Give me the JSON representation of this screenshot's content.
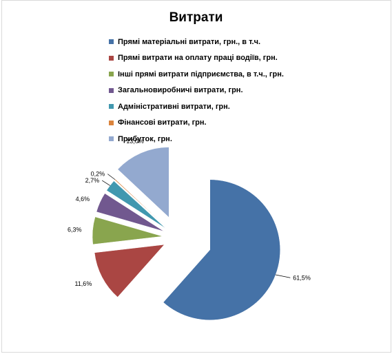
{
  "chart_data": {
    "type": "pie",
    "title": "Витрати",
    "legend_position": "top",
    "exploded": true,
    "slices": [
      {
        "label": "Прямі матеріальні витрати, грн., в т.ч.",
        "value": 61.5,
        "value_label": "61,5%",
        "color": "#4572a7"
      },
      {
        "label": "Прямі витрати на оплату праці водіїв, грн.",
        "value": 11.6,
        "value_label": "11,6%",
        "color": "#aa4643"
      },
      {
        "label": "Інші прямі витрати підприємства, в т.ч., грн.",
        "value": 6.3,
        "value_label": "6,3%",
        "color": "#89a54e"
      },
      {
        "label": "Загальновиробничі витрати, грн.",
        "value": 4.6,
        "value_label": "4,6%",
        "color": "#71588f"
      },
      {
        "label": "Адміністративні витрати, грн.",
        "value": 2.7,
        "value_label": "2,7%",
        "color": "#4198af"
      },
      {
        "label": "Фінансові витрати, грн.",
        "value": 0.2,
        "value_label": "0,2%",
        "color": "#db843d"
      },
      {
        "label": "Прибуток, грн.",
        "value": 13.0,
        "value_label": "13,0%",
        "color": "#93a9cf"
      }
    ]
  }
}
